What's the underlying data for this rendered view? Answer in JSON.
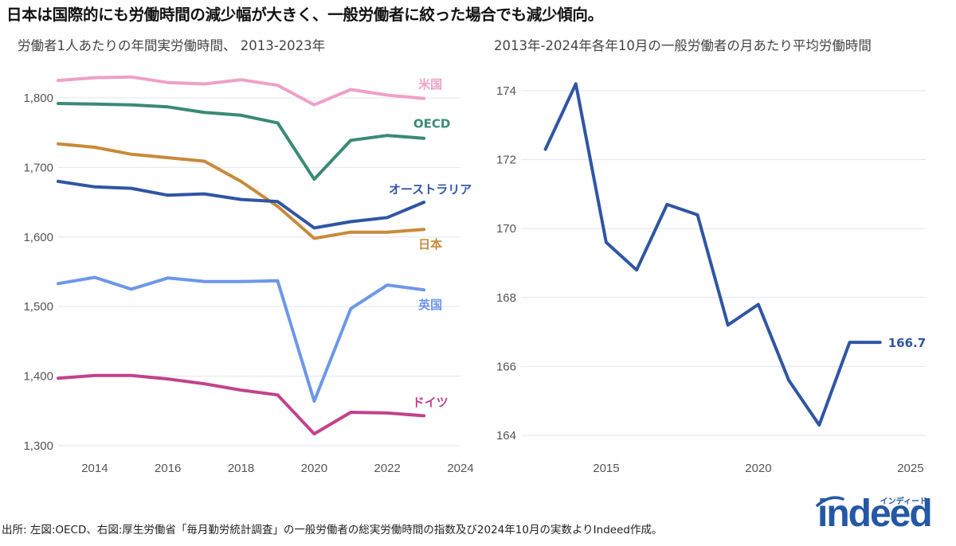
{
  "title": "日本は国際的にも労働時間の減少幅が大きく、一般労働者に絞った場合でも減少傾向。",
  "source": "出所: 左図:OECD、右図:厚生労働省「毎月勤労統計調査」の一般労働者の総実労働時間の指数及び2024年10月の実数よりIndeed作成。",
  "logo": {
    "word": "indeed",
    "kana": "インディード"
  },
  "chart_data": [
    {
      "type": "line",
      "subtitle": "労働者1人あたりの年間実労働時間、 2013-2023年",
      "x": [
        2013,
        2014,
        2015,
        2016,
        2017,
        2018,
        2019,
        2020,
        2021,
        2022,
        2023
      ],
      "xlim": [
        2013,
        2024
      ],
      "xticks": [
        2014,
        2016,
        2018,
        2020,
        2022,
        2024
      ],
      "ylim": [
        1300,
        1840
      ],
      "yticks": [
        1300,
        1400,
        1500,
        1600,
        1700,
        1800
      ],
      "ytick_labels": [
        "1,300",
        "1,400",
        "1,500",
        "1,600",
        "1,700",
        "1,800"
      ],
      "series": [
        {
          "name": "米国",
          "color": "#eea1c8",
          "values": [
            1825,
            1829,
            1830,
            1822,
            1820,
            1826,
            1818,
            1790,
            1812,
            1804,
            1799
          ]
        },
        {
          "name": "OECD",
          "color": "#3a8a76",
          "values": [
            1792,
            1791,
            1790,
            1787,
            1779,
            1775,
            1764,
            1683,
            1739,
            1746,
            1742
          ]
        },
        {
          "name": "日本",
          "color": "#c88a3a",
          "values": [
            1734,
            1729,
            1719,
            1714,
            1709,
            1680,
            1644,
            1598,
            1607,
            1607,
            1611
          ]
        },
        {
          "name": "オーストラリア",
          "color": "#2f55a4",
          "values": [
            1680,
            1672,
            1670,
            1660,
            1662,
            1654,
            1651,
            1613,
            1622,
            1628,
            1650
          ]
        },
        {
          "name": "英国",
          "color": "#6c97ea",
          "values": [
            1533,
            1542,
            1525,
            1541,
            1536,
            1536,
            1537,
            1364,
            1497,
            1531,
            1524
          ]
        },
        {
          "name": "ドイツ",
          "color": "#c2428c",
          "values": [
            1397,
            1401,
            1401,
            1396,
            1389,
            1380,
            1373,
            1317,
            1348,
            1347,
            1343
          ]
        }
      ]
    },
    {
      "type": "line",
      "subtitle": "2013年-2024年各年10月の一般労働者の月あたり平均労働時間",
      "x": [
        2013,
        2014,
        2015,
        2016,
        2017,
        2018,
        2019,
        2020,
        2021,
        2022,
        2023,
        2024
      ],
      "xlim": [
        2012.2,
        2025.5
      ],
      "xticks": [
        2015,
        2020,
        2025
      ],
      "ylim": [
        163.7,
        174.6
      ],
      "yticks": [
        164,
        166,
        168,
        170,
        172,
        174
      ],
      "series": [
        {
          "color": "#2f55a4",
          "values": [
            172.3,
            174.2,
            169.6,
            168.8,
            170.7,
            170.4,
            167.2,
            167.8,
            165.6,
            164.3,
            166.7,
            166.7
          ]
        }
      ],
      "end_label": "166.7"
    }
  ]
}
